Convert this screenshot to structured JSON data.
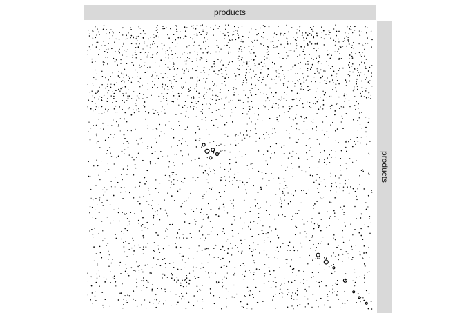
{
  "chart_data": {
    "type": "scatter",
    "title": "",
    "xlabel": "",
    "ylabel": "",
    "facet_col_label": "products",
    "facet_row_label": "products",
    "grid": false,
    "legend": "none",
    "xlim": [
      0,
      1000
    ],
    "ylim": [
      0,
      1000
    ],
    "point_color": "#000000",
    "background": "#ffffff",
    "strip_color": "#d9d9d9",
    "density_regions": [
      {
        "x0": 0,
        "x1": 1000,
        "y0": 0,
        "y1": 1000,
        "density": 0.25
      },
      {
        "x0": 0,
        "x1": 1000,
        "y0": 700,
        "y1": 1000,
        "density": 0.45
      },
      {
        "x0": 0,
        "x1": 1000,
        "y0": 0,
        "y1": 80,
        "density": 0.2
      }
    ],
    "highlight_points": [
      {
        "x": 420,
        "y": 555,
        "size": 3
      },
      {
        "x": 440,
        "y": 560,
        "size": 2.5
      },
      {
        "x": 408,
        "y": 578,
        "size": 2
      },
      {
        "x": 455,
        "y": 545,
        "size": 2
      },
      {
        "x": 432,
        "y": 532,
        "size": 2
      },
      {
        "x": 810,
        "y": 190,
        "size": 2.5
      },
      {
        "x": 838,
        "y": 165,
        "size": 3
      },
      {
        "x": 865,
        "y": 145,
        "size": 1.5
      },
      {
        "x": 905,
        "y": 100,
        "size": 2.5
      },
      {
        "x": 935,
        "y": 60,
        "size": 1.5
      },
      {
        "x": 955,
        "y": 40,
        "size": 1.5
      },
      {
        "x": 980,
        "y": 20,
        "size": 1.5
      }
    ]
  }
}
